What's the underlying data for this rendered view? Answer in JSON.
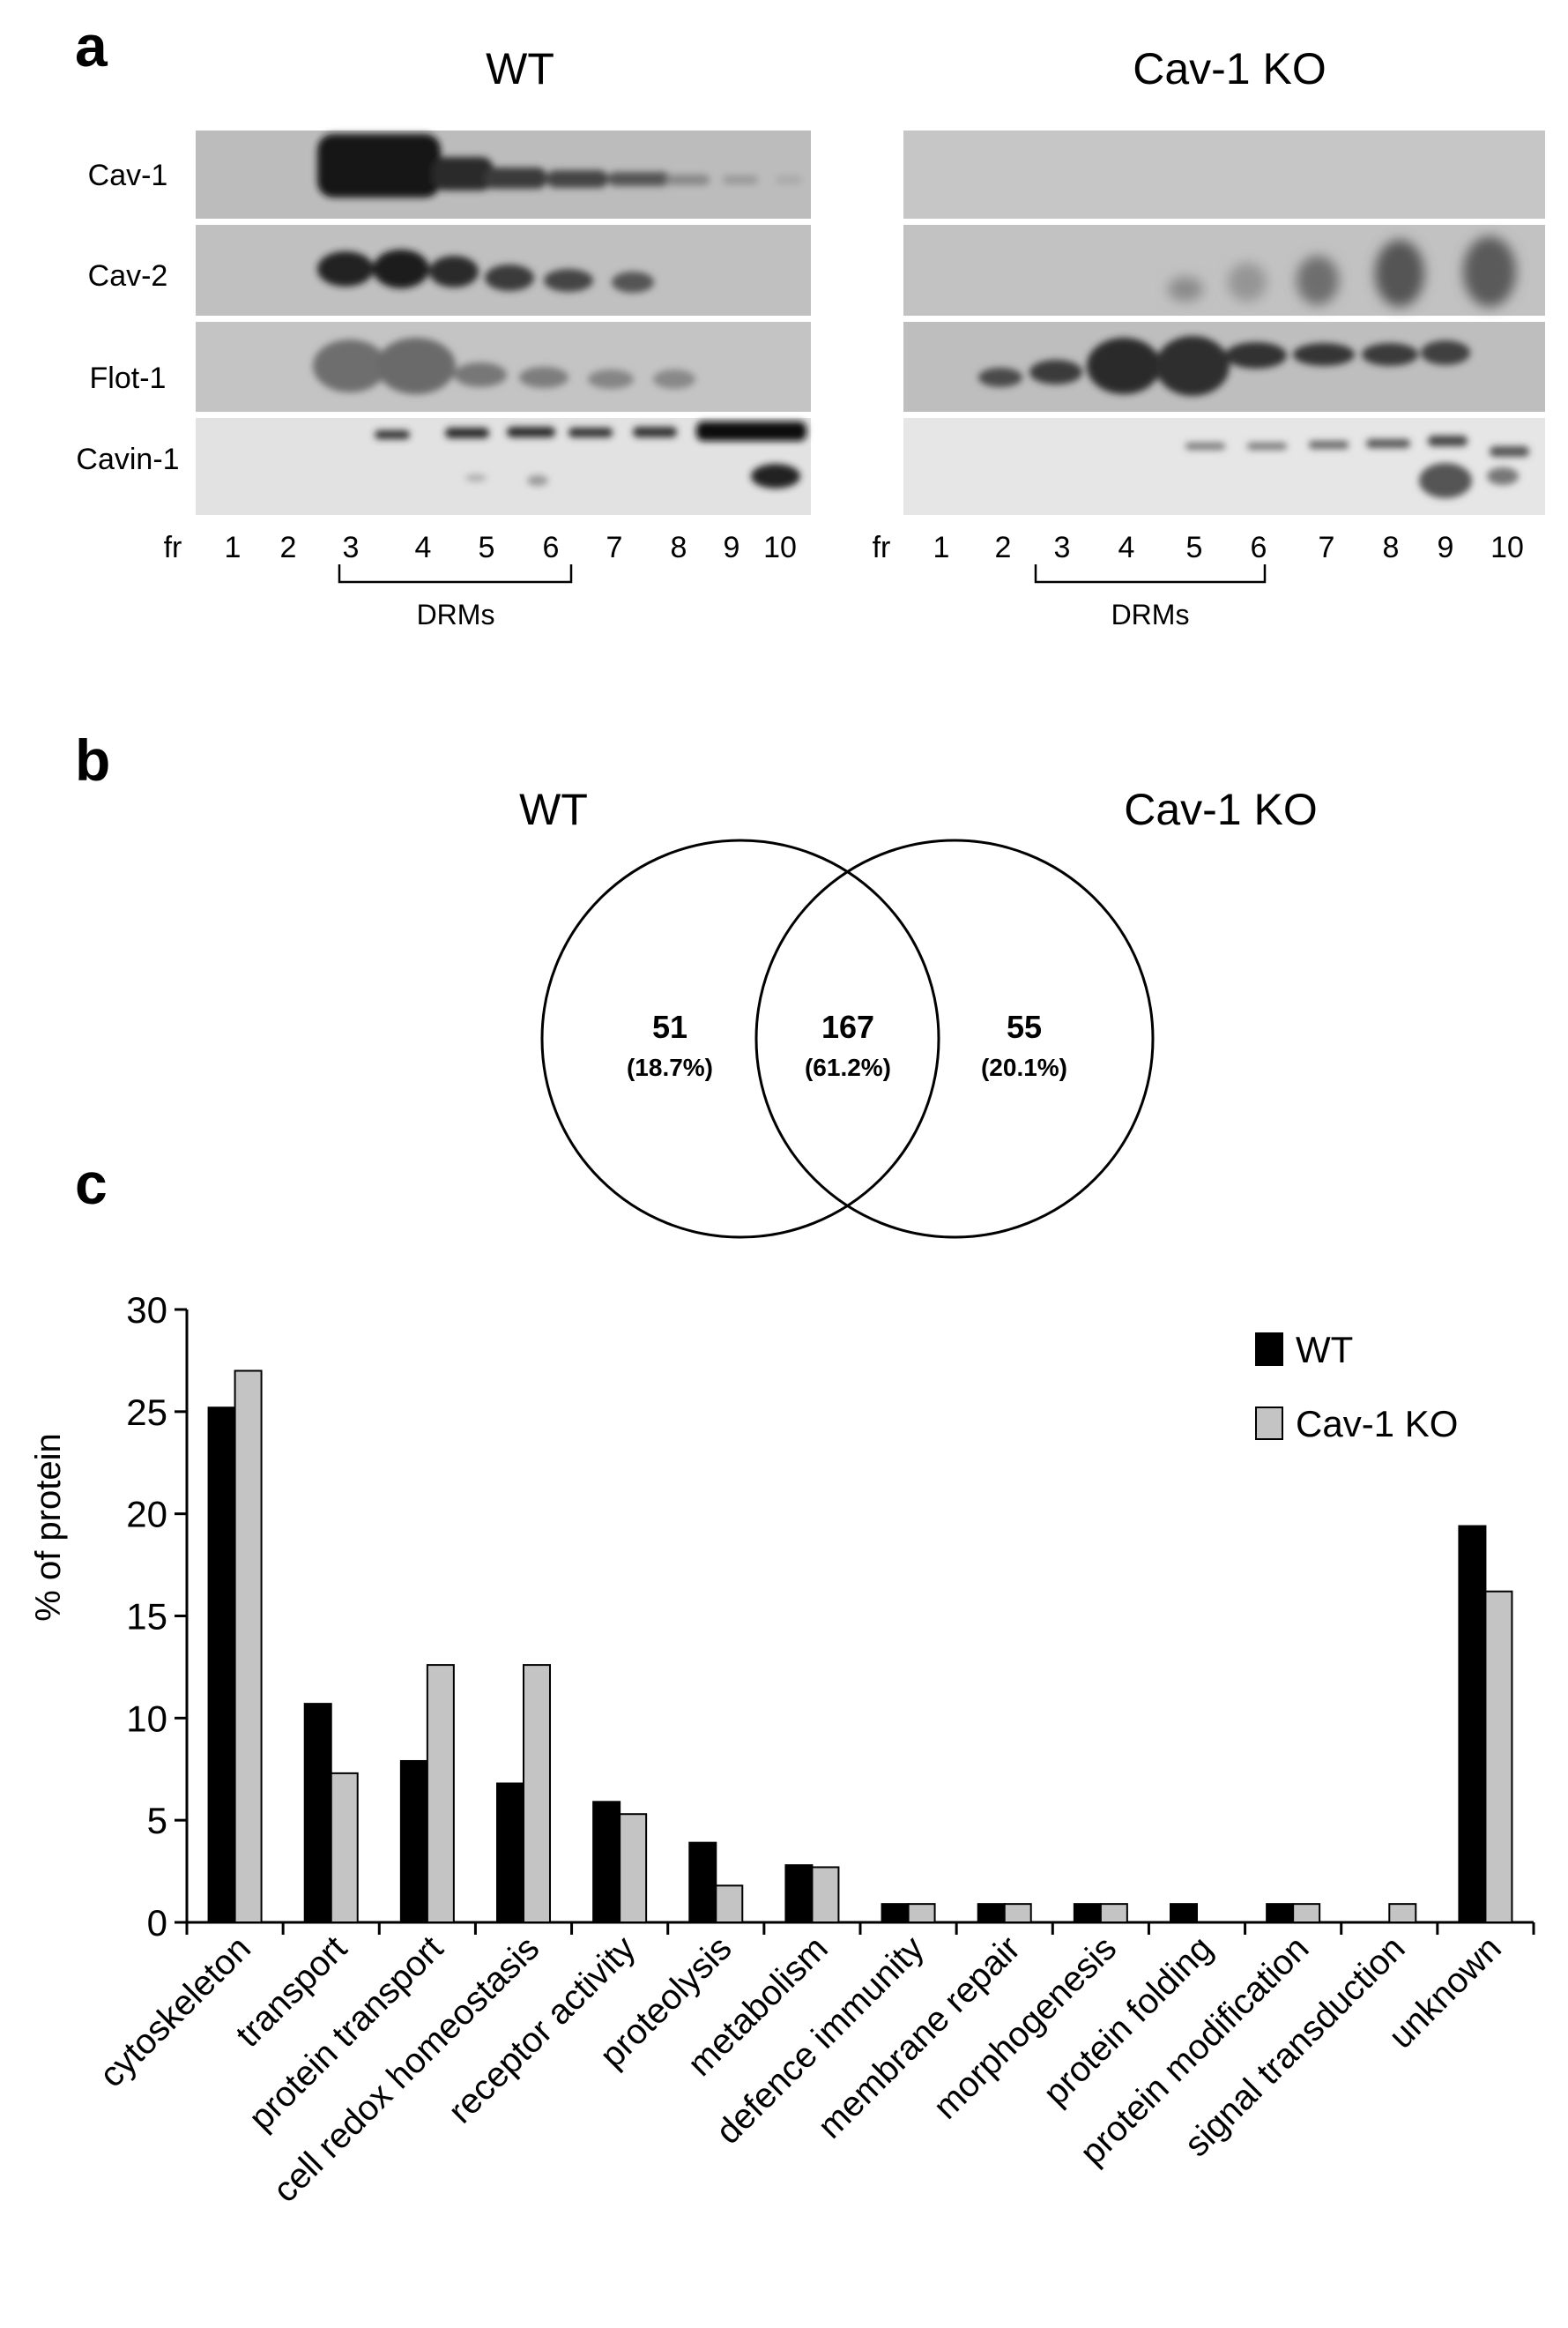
{
  "panels": {
    "a": "a",
    "b": "b",
    "c": "c"
  },
  "blot": {
    "groups": [
      {
        "name": "WT"
      },
      {
        "name": "Cav-1 KO"
      }
    ],
    "proteins": [
      "Cav-1",
      "Cav-2",
      "Flot-1",
      "Cavin-1"
    ],
    "fraction_label": "fr",
    "fractions": [
      "1",
      "2",
      "3",
      "4",
      "5",
      "6",
      "7",
      "8",
      "9",
      "10"
    ],
    "drm_label": "DRMs"
  },
  "venn": {
    "left_label": "WT",
    "right_label": "Cav-1 KO",
    "left": {
      "count": "51",
      "pct": "(18.7%)"
    },
    "overlap": {
      "count": "167",
      "pct": "(61.2%)"
    },
    "right": {
      "count": "55",
      "pct": "(20.1%)"
    }
  },
  "chart_data": {
    "type": "bar",
    "title": "",
    "xlabel": "",
    "ylabel": "% of protein",
    "ylim": [
      0,
      30
    ],
    "yticks": [
      0,
      5,
      10,
      15,
      20,
      25,
      30
    ],
    "legend_position": "top-right",
    "categories": [
      "cytoskeleton",
      "transport",
      "protein transport",
      "cell redox homeostasis",
      "receptor activity",
      "proteolysis",
      "metabolism",
      "defence immunity",
      "membrane repair",
      "morphogenesis",
      "protein folding",
      "protein modification",
      "signal transduction",
      "unknown"
    ],
    "series": [
      {
        "name": "WT",
        "color": "#000000",
        "values": [
          25.2,
          10.7,
          7.9,
          6.8,
          5.9,
          3.9,
          2.8,
          0.9,
          0.9,
          0.9,
          0.9,
          0.9,
          0,
          19.4
        ]
      },
      {
        "name": "Cav-1 KO",
        "color": "#c4c4c4",
        "values": [
          27.0,
          7.3,
          12.6,
          12.6,
          5.3,
          1.8,
          2.7,
          0.9,
          0.9,
          0.9,
          0,
          0.9,
          0.9,
          16.2
        ]
      }
    ]
  }
}
